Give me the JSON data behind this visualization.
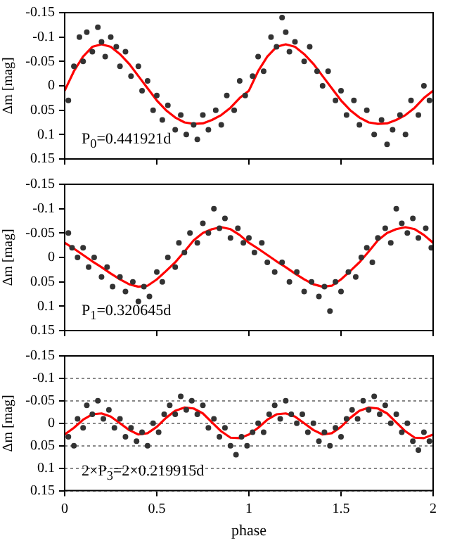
{
  "chart_data": [
    {
      "type": "scatter",
      "ylabel": "Δm [mag]",
      "annotations": [
        "P$_{0}$=0.441921d"
      ],
      "xlim": [
        0,
        2
      ],
      "xticks": [
        0,
        0.5,
        1,
        1.5,
        2
      ],
      "ylim": [
        0.15,
        -0.15
      ],
      "yticks": [
        -0.15,
        -0.1,
        -0.05,
        0,
        0.05,
        0.1,
        0.15
      ],
      "tick_labels": "y",
      "legend": false,
      "marker": "circle",
      "series": [
        {
          "type": "scatter",
          "color": "#333333",
          "x": [
            0.02,
            0.05,
            0.08,
            0.1,
            0.12,
            0.15,
            0.18,
            0.2,
            0.22,
            0.25,
            0.28,
            0.3,
            0.33,
            0.36,
            0.4,
            0.42,
            0.45,
            0.48,
            0.5,
            0.53,
            0.56,
            0.6,
            0.63,
            0.66,
            0.7,
            0.72,
            0.75,
            0.78,
            0.82,
            0.85,
            0.88,
            0.92,
            0.95,
            0.98,
            1.02,
            1.05,
            1.08,
            1.12,
            1.15,
            1.18,
            1.2,
            1.22,
            1.25,
            1.3,
            1.33,
            1.37,
            1.4,
            1.43,
            1.47,
            1.5,
            1.53,
            1.57,
            1.6,
            1.64,
            1.68,
            1.72,
            1.75,
            1.78,
            1.82,
            1.85,
            1.88,
            1.92,
            1.95,
            1.98
          ],
          "values": [
            0.03,
            -0.04,
            -0.1,
            -0.05,
            -0.11,
            -0.07,
            -0.12,
            -0.09,
            -0.06,
            -0.1,
            -0.08,
            -0.04,
            -0.07,
            -0.02,
            -0.04,
            0.01,
            -0.01,
            0.05,
            0.02,
            0.07,
            0.04,
            0.09,
            0.06,
            0.1,
            0.08,
            0.11,
            0.06,
            0.09,
            0.05,
            0.08,
            0.02,
            0.05,
            -0.01,
            0.02,
            -0.02,
            -0.06,
            -0.03,
            -0.1,
            -0.08,
            -0.14,
            -0.11,
            -0.07,
            -0.09,
            -0.05,
            -0.08,
            -0.03,
            0,
            -0.03,
            0.03,
            0.01,
            0.06,
            0.03,
            0.08,
            0.05,
            0.1,
            0.07,
            0.12,
            0.09,
            0.06,
            0.1,
            0.03,
            0.06,
            0,
            0.03
          ]
        },
        {
          "type": "line",
          "color": "#ff0000",
          "marker": "none",
          "x": [
            0,
            0.05,
            0.1,
            0.15,
            0.2,
            0.25,
            0.3,
            0.35,
            0.4,
            0.45,
            0.5,
            0.55,
            0.6,
            0.65,
            0.7,
            0.75,
            0.8,
            0.85,
            0.9,
            0.95,
            1,
            1.05,
            1.1,
            1.15,
            1.2,
            1.25,
            1.3,
            1.35,
            1.4,
            1.45,
            1.5,
            1.55,
            1.6,
            1.65,
            1.7,
            1.75,
            1.8,
            1.85,
            1.9,
            1.95,
            2
          ],
          "values": [
            0.01,
            -0.03,
            -0.06,
            -0.08,
            -0.085,
            -0.08,
            -0.065,
            -0.045,
            -0.02,
            0.005,
            0.03,
            0.05,
            0.065,
            0.075,
            0.078,
            0.077,
            0.07,
            0.06,
            0.045,
            0.025,
            0.01,
            -0.03,
            -0.06,
            -0.08,
            -0.085,
            -0.08,
            -0.065,
            -0.045,
            -0.02,
            0.005,
            0.03,
            0.05,
            0.065,
            0.075,
            0.078,
            0.077,
            0.07,
            0.06,
            0.045,
            0.025,
            0.01
          ]
        }
      ]
    },
    {
      "type": "scatter",
      "ylabel": "Δm [mag]",
      "annotations": [
        "P$_{1}$=0.320645d"
      ],
      "xlim": [
        0,
        2
      ],
      "xticks": [
        0,
        0.5,
        1,
        1.5,
        2
      ],
      "ylim": [
        0.15,
        -0.15
      ],
      "yticks": [
        -0.15,
        -0.1,
        -0.05,
        0,
        0.05,
        0.1,
        0.15
      ],
      "tick_labels": "y",
      "legend": false,
      "marker": "circle",
      "series": [
        {
          "type": "scatter",
          "color": "#333333",
          "x": [
            0.02,
            0.04,
            0.07,
            0.1,
            0.13,
            0.16,
            0.2,
            0.23,
            0.26,
            0.3,
            0.33,
            0.37,
            0.4,
            0.43,
            0.46,
            0.5,
            0.53,
            0.56,
            0.6,
            0.62,
            0.65,
            0.68,
            0.72,
            0.75,
            0.78,
            0.81,
            0.84,
            0.87,
            0.9,
            0.94,
            0.97,
            1,
            1.03,
            1.07,
            1.1,
            1.14,
            1.18,
            1.22,
            1.26,
            1.3,
            1.34,
            1.38,
            1.41,
            1.44,
            1.47,
            1.5,
            1.54,
            1.58,
            1.61,
            1.64,
            1.67,
            1.7,
            1.74,
            1.77,
            1.8,
            1.83,
            1.86,
            1.89,
            1.92,
            1.96,
            1.99
          ],
          "values": [
            -0.05,
            -0.02,
            0,
            -0.02,
            0.02,
            0,
            0.04,
            0.02,
            0.06,
            0.04,
            0.07,
            0.05,
            0.09,
            0.06,
            0.08,
            0.03,
            0.05,
            0,
            0.02,
            -0.03,
            -0.01,
            -0.05,
            -0.03,
            -0.07,
            -0.05,
            -0.1,
            -0.06,
            -0.08,
            -0.04,
            -0.06,
            -0.03,
            -0.04,
            -0.01,
            -0.03,
            0.01,
            0.03,
            0.01,
            0.05,
            0.03,
            0.07,
            0.05,
            0.08,
            0.06,
            0.11,
            0.05,
            0.07,
            0.03,
            0.04,
            0,
            -0.02,
            0.01,
            -0.04,
            -0.06,
            -0.03,
            -0.1,
            -0.07,
            -0.05,
            -0.08,
            -0.04,
            -0.06,
            -0.02
          ]
        },
        {
          "type": "line",
          "color": "#ff0000",
          "marker": "none",
          "x": [
            0,
            0.05,
            0.1,
            0.15,
            0.2,
            0.25,
            0.3,
            0.35,
            0.4,
            0.45,
            0.5,
            0.55,
            0.6,
            0.65,
            0.7,
            0.75,
            0.8,
            0.85,
            0.9,
            0.95,
            1,
            1.05,
            1.1,
            1.15,
            1.2,
            1.25,
            1.3,
            1.35,
            1.4,
            1.45,
            1.5,
            1.55,
            1.6,
            1.65,
            1.7,
            1.75,
            1.8,
            1.85,
            1.9,
            1.95,
            2
          ],
          "values": [
            -0.03,
            -0.018,
            -0.005,
            0.008,
            0.02,
            0.033,
            0.045,
            0.055,
            0.06,
            0.058,
            0.045,
            0.028,
            0.01,
            -0.012,
            -0.035,
            -0.05,
            -0.058,
            -0.062,
            -0.058,
            -0.046,
            -0.03,
            -0.018,
            -0.005,
            0.008,
            0.02,
            0.033,
            0.045,
            0.055,
            0.06,
            0.058,
            0.045,
            0.028,
            0.01,
            -0.012,
            -0.035,
            -0.05,
            -0.058,
            -0.062,
            -0.058,
            -0.046,
            -0.03
          ]
        }
      ]
    },
    {
      "type": "scatter",
      "xlabel": "phase",
      "ylabel": "Δm [mag]",
      "annotations": [
        "2×P$_{3}$=2×0.219915d"
      ],
      "xlim": [
        0,
        2
      ],
      "xticks": [
        0,
        0.5,
        1,
        1.5,
        2
      ],
      "ylim": [
        0.15,
        -0.15
      ],
      "yticks": [
        -0.15,
        -0.1,
        -0.05,
        0,
        0.05,
        0.1,
        0.15
      ],
      "grid": "y",
      "legend": false,
      "marker": "circle",
      "series": [
        {
          "type": "scatter",
          "color": "#333333",
          "x": [
            0.02,
            0.05,
            0.07,
            0.1,
            0.12,
            0.15,
            0.18,
            0.21,
            0.24,
            0.27,
            0.3,
            0.33,
            0.36,
            0.39,
            0.42,
            0.45,
            0.48,
            0.51,
            0.54,
            0.57,
            0.6,
            0.63,
            0.66,
            0.69,
            0.72,
            0.75,
            0.78,
            0.81,
            0.84,
            0.87,
            0.9,
            0.93,
            0.96,
            0.99,
            1.02,
            1.05,
            1.08,
            1.11,
            1.14,
            1.17,
            1.2,
            1.23,
            1.26,
            1.29,
            1.32,
            1.35,
            1.38,
            1.41,
            1.44,
            1.47,
            1.5,
            1.53,
            1.56,
            1.59,
            1.62,
            1.65,
            1.68,
            1.71,
            1.74,
            1.77,
            1.8,
            1.83,
            1.86,
            1.89,
            1.92,
            1.95,
            1.98
          ],
          "values": [
            0.03,
            0.05,
            -0.01,
            0.01,
            -0.04,
            -0.02,
            -0.05,
            -0.01,
            -0.03,
            0.01,
            -0.01,
            0.03,
            0.01,
            0.04,
            0.02,
            0.05,
            0,
            0.02,
            -0.02,
            -0.04,
            -0.02,
            -0.06,
            -0.03,
            -0.05,
            -0.02,
            -0.04,
            0.01,
            -0.01,
            0.03,
            0.01,
            0.05,
            0.07,
            0.03,
            0.05,
            0.02,
            0,
            0.02,
            -0.02,
            -0.04,
            -0.01,
            -0.05,
            -0.02,
            0,
            -0.02,
            0.02,
            0,
            0.04,
            0.02,
            0.05,
            0.01,
            0.03,
            -0.01,
            -0.03,
            -0.01,
            -0.05,
            -0.03,
            -0.06,
            -0.02,
            -0.04,
            0,
            -0.02,
            0.02,
            0,
            0.04,
            0.06,
            0.02,
            0.04
          ]
        },
        {
          "type": "line",
          "color": "#ff0000",
          "marker": "none",
          "x": [
            0,
            0.05,
            0.1,
            0.15,
            0.2,
            0.25,
            0.3,
            0.35,
            0.4,
            0.45,
            0.5,
            0.55,
            0.6,
            0.65,
            0.7,
            0.75,
            0.8,
            0.85,
            0.9,
            0.95,
            1,
            1.05,
            1.1,
            1.15,
            1.2,
            1.25,
            1.3,
            1.35,
            1.4,
            1.45,
            1.5,
            1.55,
            1.6,
            1.65,
            1.7,
            1.75,
            1.8,
            1.85,
            1.9,
            1.95,
            2
          ],
          "values": [
            0.025,
            0.01,
            -0.008,
            -0.02,
            -0.022,
            -0.015,
            0,
            0.015,
            0.025,
            0.022,
            0.008,
            -0.012,
            -0.028,
            -0.035,
            -0.033,
            -0.022,
            -0.002,
            0.018,
            0.032,
            0.033,
            0.025,
            0.01,
            -0.008,
            -0.02,
            -0.022,
            -0.015,
            0,
            0.015,
            0.025,
            0.022,
            0.008,
            -0.012,
            -0.028,
            -0.035,
            -0.033,
            -0.022,
            -0.002,
            0.018,
            0.032,
            0.033,
            0.025
          ]
        }
      ]
    }
  ]
}
